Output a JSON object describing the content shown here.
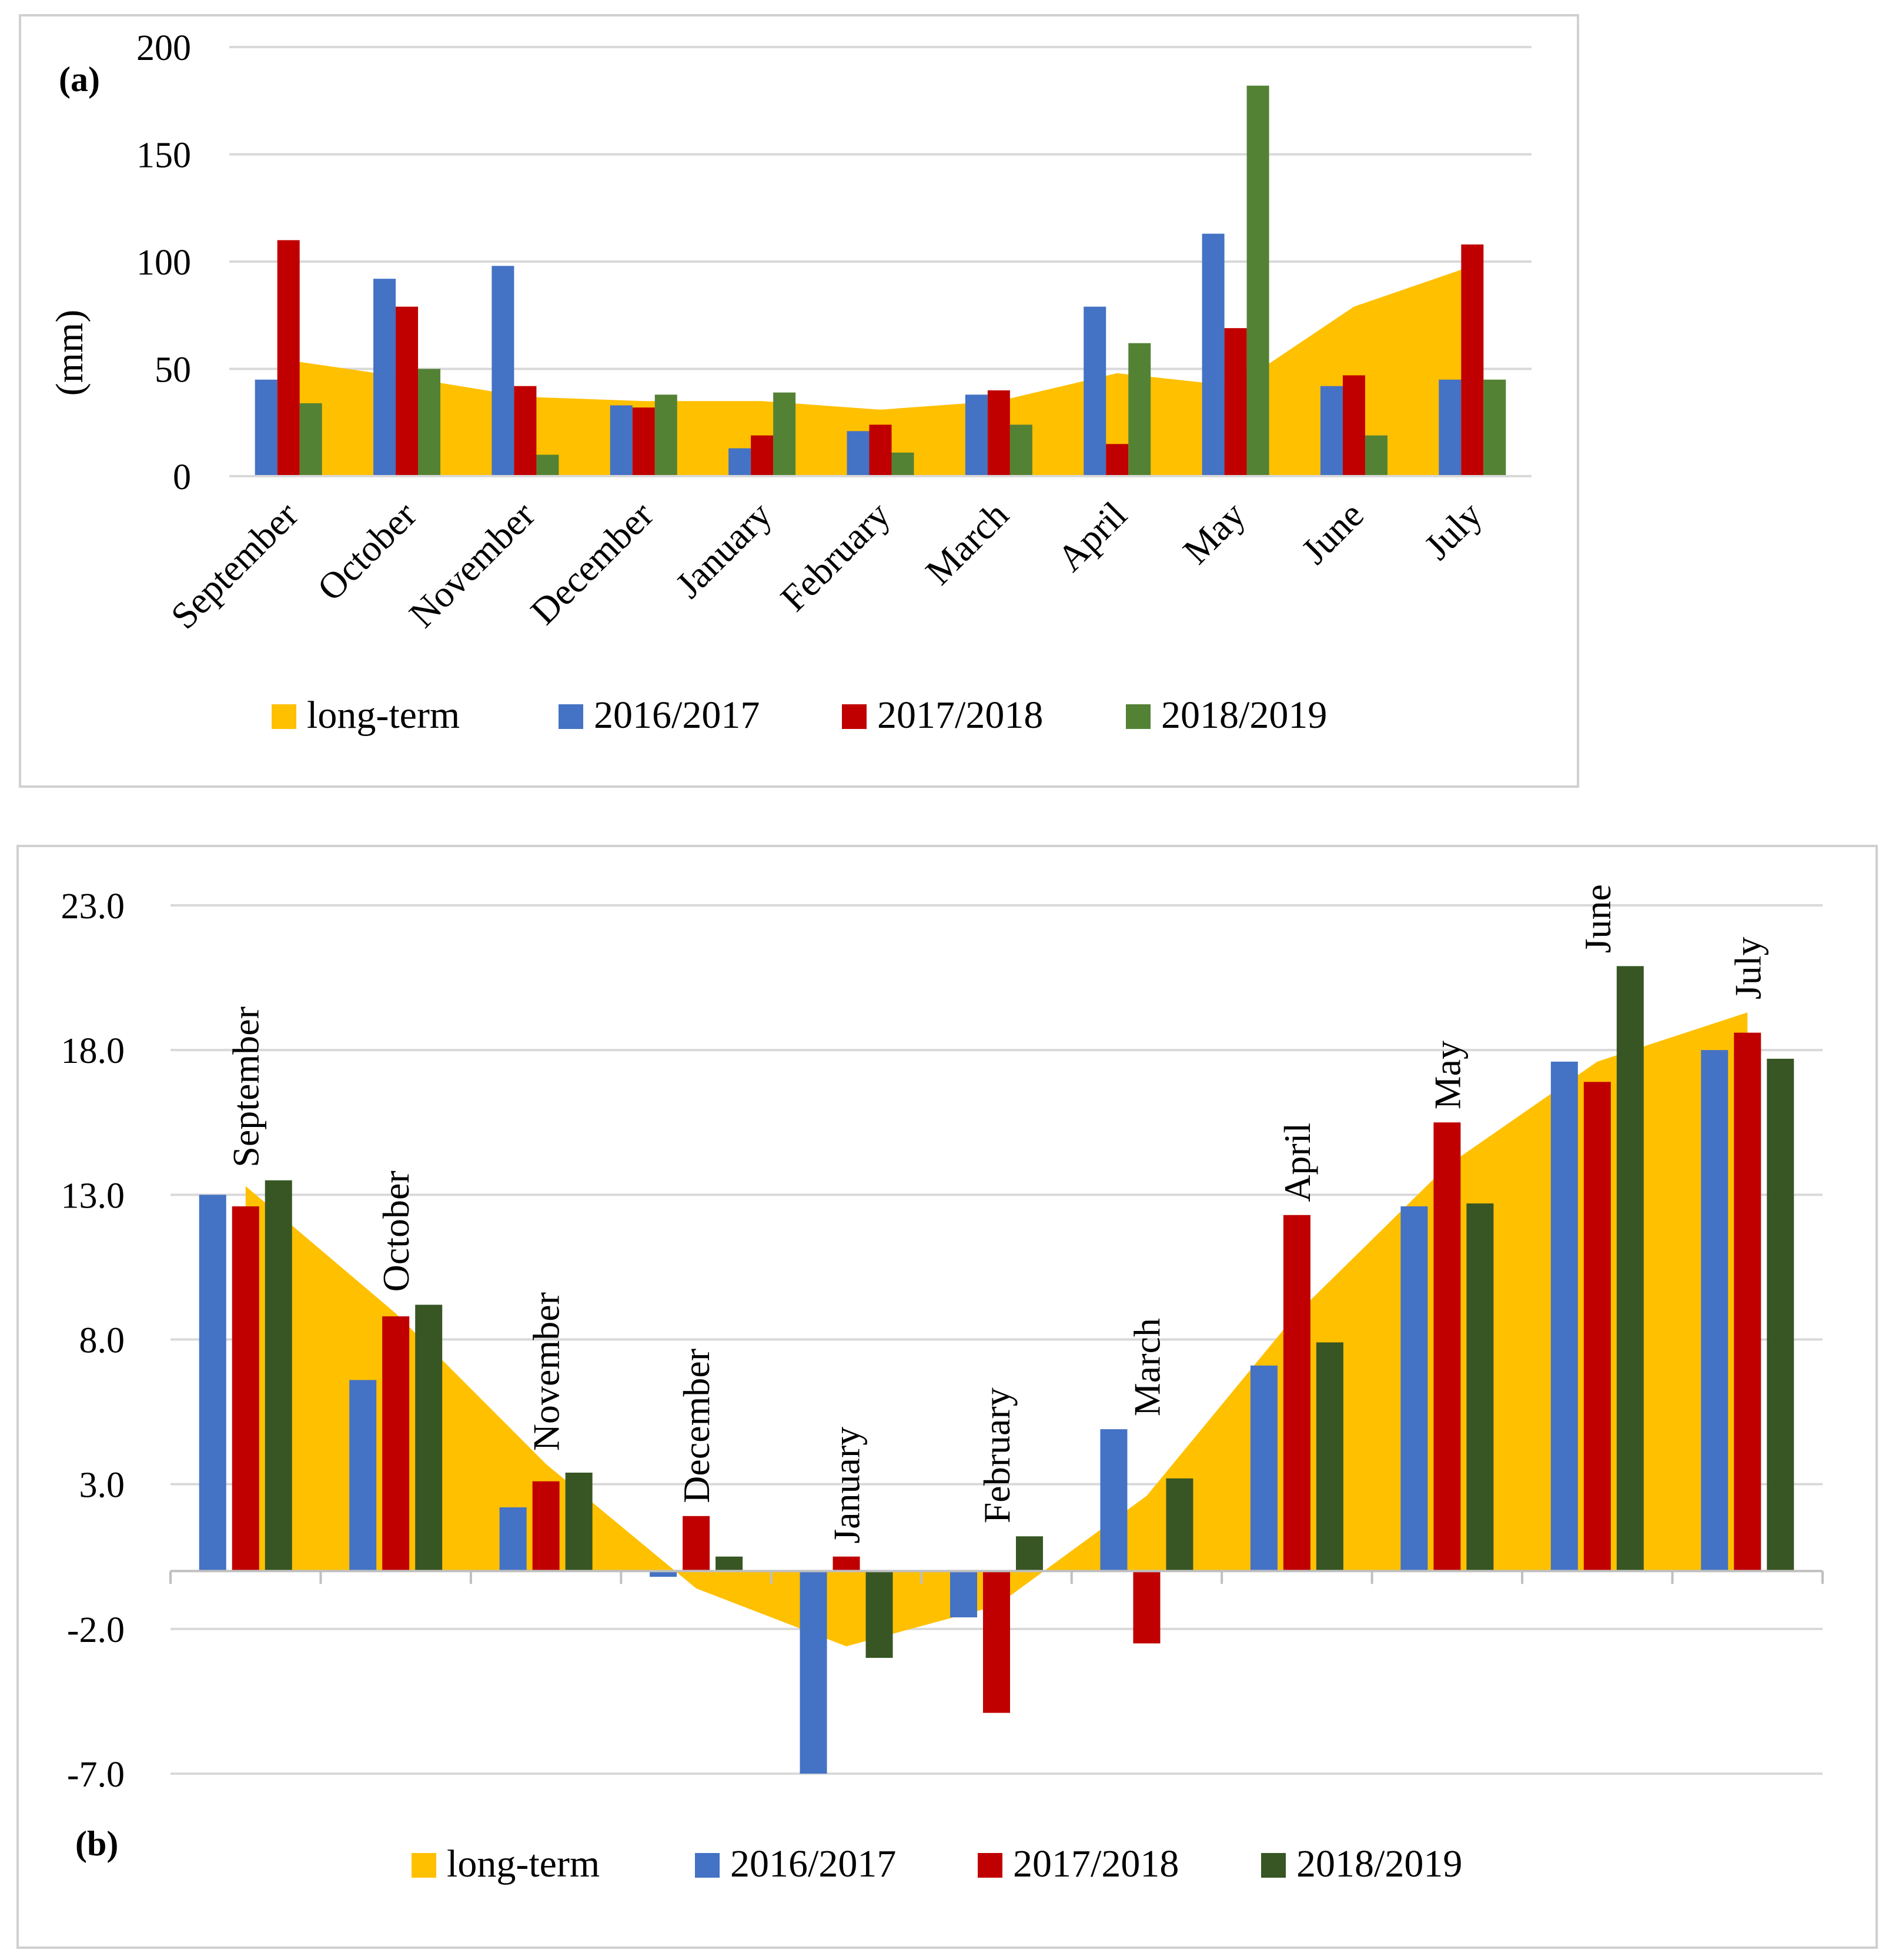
{
  "chart_data": [
    {
      "panel": "(a)",
      "type": "bar",
      "title": "",
      "ylabel": "(mm)",
      "xlabel": "",
      "ylim": [
        0,
        200
      ],
      "yticks": [
        "0",
        "50",
        "100",
        "150",
        "200"
      ],
      "ytick_values": [
        0,
        50,
        100,
        150,
        200
      ],
      "categories": [
        "September",
        "October",
        "November",
        "December",
        "January",
        "February",
        "March",
        "April",
        "May",
        "June",
        "July"
      ],
      "area": {
        "name": "long-term",
        "color": "#FFC000",
        "values": [
          54,
          46,
          37,
          35,
          35,
          31,
          35,
          48,
          42,
          79,
          98
        ]
      },
      "series": [
        {
          "name": "2016/2017",
          "color": "#4472C4",
          "values": [
            45,
            92,
            98,
            33,
            13,
            21,
            38,
            79,
            113,
            42,
            45
          ]
        },
        {
          "name": "2017/2018",
          "color": "#C00000",
          "values": [
            110,
            79,
            42,
            32,
            19,
            24,
            40,
            15,
            69,
            47,
            108
          ]
        },
        {
          "name": "2018/2019",
          "color": "#548235",
          "values": [
            34,
            50,
            10,
            38,
            39,
            11,
            24,
            62,
            182,
            19,
            45
          ]
        }
      ],
      "legend": [
        "long-term",
        "2016/2017",
        "2017/2018",
        "2018/2019"
      ],
      "legend_position": "bottom"
    },
    {
      "panel": "(b)",
      "type": "bar",
      "title": "",
      "ylabel": "",
      "xlabel": "",
      "ylim": [
        -7,
        23
      ],
      "yticks": [
        "-7.0",
        "-2.0",
        "3.0",
        "8.0",
        "13.0",
        "18.0",
        "23.0"
      ],
      "ytick_values": [
        -7,
        -2,
        3,
        8,
        13,
        18,
        23
      ],
      "categories": [
        "September",
        "October",
        "November",
        "December",
        "January",
        "February",
        "March",
        "April",
        "May",
        "June",
        "July"
      ],
      "area": {
        "name": "long-term",
        "color": "#FFC000",
        "values": [
          13.3,
          8.9,
          3.7,
          -0.6,
          -2.6,
          -1.2,
          2.6,
          8.9,
          14.0,
          17.6,
          19.3
        ]
      },
      "series": [
        {
          "name": "2016/2017",
          "color": "#4472C4",
          "values": [
            13.0,
            6.6,
            2.2,
            -0.2,
            -7.0,
            -1.6,
            4.9,
            7.1,
            12.6,
            17.6,
            18.0
          ]
        },
        {
          "name": "2017/2018",
          "color": "#C00000",
          "values": [
            12.6,
            8.8,
            3.1,
            1.9,
            0.5,
            -4.9,
            -2.5,
            12.3,
            15.5,
            16.9,
            18.6
          ]
        },
        {
          "name": "2018/2019",
          "color": "#375623",
          "values": [
            13.5,
            9.2,
            3.4,
            0.5,
            -3.0,
            1.2,
            3.2,
            7.9,
            12.7,
            20.9,
            17.7
          ]
        }
      ],
      "legend": [
        "long-term",
        "2016/2017",
        "2017/2018",
        "2018/2019"
      ],
      "legend_position": "bottom"
    }
  ]
}
